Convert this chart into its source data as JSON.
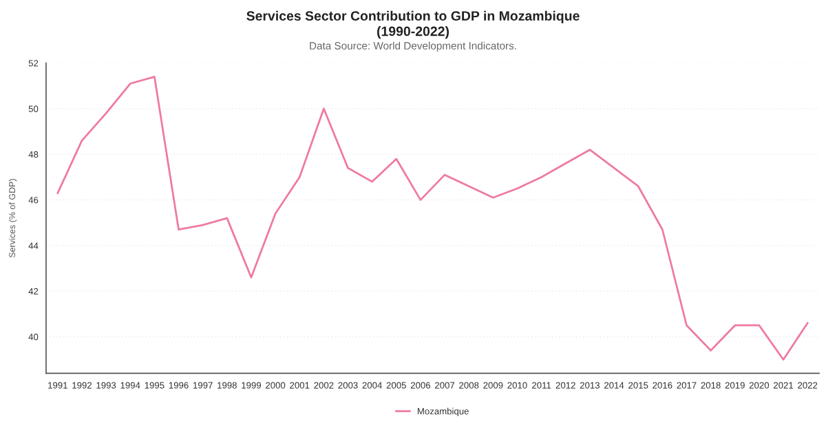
{
  "chart_data": {
    "type": "line",
    "title": "Services Sector Contribution to GDP in Mozambique\n(1990-2022)",
    "subtitle": "Data Source: World Development Indicators.",
    "ylabel": "Services (% of GDP)",
    "categories": [
      "1991",
      "1992",
      "1993",
      "1994",
      "1995",
      "1996",
      "1997",
      "1998",
      "1999",
      "2000",
      "2001",
      "2002",
      "2003",
      "2004",
      "2005",
      "2006",
      "2007",
      "2008",
      "2009",
      "2010",
      "2011",
      "2012",
      "2013",
      "2014",
      "2015",
      "2016",
      "2017",
      "2018",
      "2019",
      "2020",
      "2021",
      "2022"
    ],
    "series": [
      {
        "name": "Mozambique",
        "color": "#ee7aa2",
        "values": [
          46.3,
          48.6,
          49.8,
          51.1,
          51.4,
          44.7,
          44.9,
          45.2,
          42.6,
          45.4,
          47.0,
          50.0,
          47.4,
          46.8,
          47.8,
          46.0,
          47.1,
          46.6,
          46.1,
          46.5,
          47.0,
          47.6,
          48.2,
          47.4,
          46.6,
          44.7,
          40.5,
          39.4,
          40.5,
          40.5,
          39.0,
          40.6
        ]
      }
    ],
    "ylim": [
      38.4,
      52
    ],
    "yticks": [
      40,
      42,
      44,
      46,
      48,
      50,
      52
    ],
    "grid": "y",
    "legend": "bottom",
    "marker": "none",
    "line_style": "solid"
  }
}
